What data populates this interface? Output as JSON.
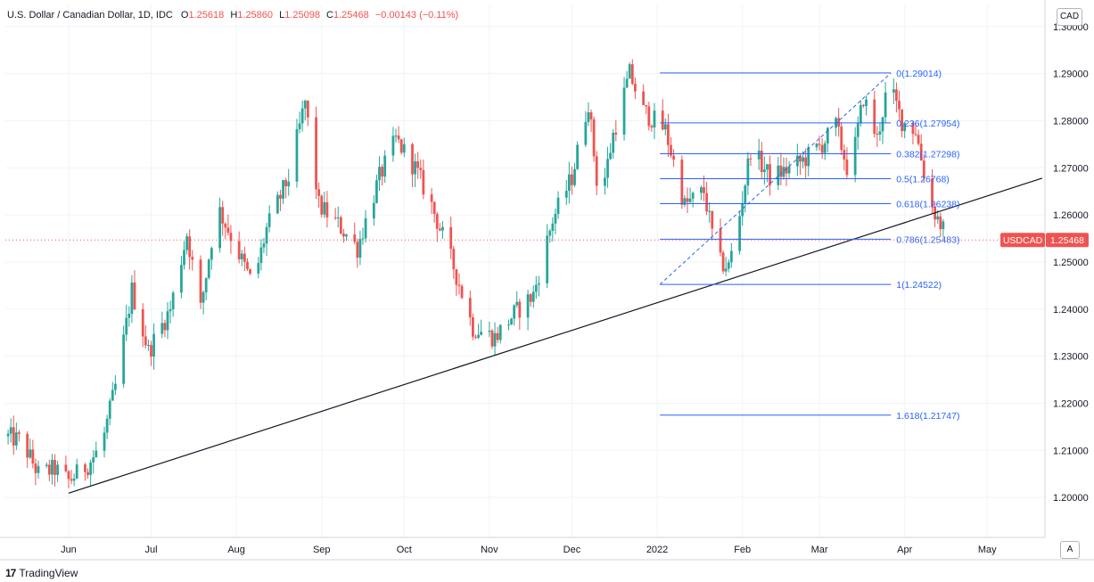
{
  "legend": {
    "name": "U.S. Dollar / Canadian Dollar, 1D, IDC",
    "o_label": "O",
    "o": "1.25618",
    "h_label": "H",
    "h": "1.25860",
    "l_label": "L",
    "l": "1.25098",
    "c_label": "C",
    "c": "1.25468",
    "change": "−0.00143 (−0.11%)"
  },
  "currency": "CAD",
  "auto_button": "A",
  "brand": {
    "logo": "17",
    "text": "TradingView"
  },
  "price_tag": {
    "symbol": "USDCAD",
    "value": "1.25468",
    "price": 1.25468
  },
  "colors": {
    "up": "#26a69a",
    "down": "#ef5350",
    "fib": "#2962ff",
    "trend": "#131722",
    "grid": "#f0f3fa"
  },
  "chart_data": {
    "type": "candlestick",
    "y_ticks": [
      "1.30000",
      "1.29000",
      "1.28000",
      "1.27000",
      "1.26000",
      "1.25000",
      "1.24000",
      "1.23000",
      "1.22000",
      "1.21000",
      "1.20000"
    ],
    "y_tick_values": [
      1.3,
      1.29,
      1.28,
      1.27,
      1.26,
      1.25,
      1.24,
      1.23,
      1.22,
      1.21,
      1.2
    ],
    "ylim": [
      1.1915,
      1.3045
    ],
    "x_ticks": [
      "Jun",
      "Jul",
      "Aug",
      "Sep",
      "Oct",
      "Nov",
      "Dec",
      "2022",
      "Feb",
      "Mar",
      "Apr",
      "May"
    ],
    "x_tick_days": [
      15,
      45,
      76,
      107,
      137,
      168,
      198,
      229,
      260,
      288,
      319,
      349
    ],
    "xlim": [
      -8,
      370
    ],
    "trendline": {
      "start": {
        "day": 15,
        "price": 1.2009
      },
      "end": {
        "day": 369,
        "price": 1.2678
      }
    },
    "fibonacci": {
      "start": {
        "day": 230,
        "price": 1.24522
      },
      "end": {
        "day": 314,
        "price": 1.29014
      },
      "levels": [
        {
          "label": "0(1.29014)",
          "price": 1.29014
        },
        {
          "label": "0.236(1.27954)",
          "price": 1.27954
        },
        {
          "label": "0.382(1.27298)",
          "price": 1.27298
        },
        {
          "label": "0.5(1.26768)",
          "price": 1.26768
        },
        {
          "label": "0.618(1.26238)",
          "price": 1.26238
        },
        {
          "label": "0.786(1.25483)",
          "price": 1.25483
        },
        {
          "label": "1(1.24522)",
          "price": 1.24522
        },
        {
          "label": "1.618(1.21747)",
          "price": 1.21747
        }
      ]
    },
    "anchors": [
      {
        "day": -8,
        "p": 1.213
      },
      {
        "day": -2,
        "p": 1.212
      },
      {
        "day": 4,
        "p": 1.205
      },
      {
        "day": 10,
        "p": 1.206
      },
      {
        "day": 15,
        "p": 1.2035
      },
      {
        "day": 22,
        "p": 1.207
      },
      {
        "day": 27,
        "p": 1.211
      },
      {
        "day": 33,
        "p": 1.226
      },
      {
        "day": 38,
        "p": 1.244
      },
      {
        "day": 44,
        "p": 1.231
      },
      {
        "day": 52,
        "p": 1.24
      },
      {
        "day": 58,
        "p": 1.256
      },
      {
        "day": 63,
        "p": 1.24
      },
      {
        "day": 69,
        "p": 1.262
      },
      {
        "day": 76,
        "p": 1.253
      },
      {
        "day": 82,
        "p": 1.245
      },
      {
        "day": 87,
        "p": 1.257
      },
      {
        "day": 95,
        "p": 1.268
      },
      {
        "day": 101,
        "p": 1.284
      },
      {
        "day": 106,
        "p": 1.262
      },
      {
        "day": 113,
        "p": 1.258
      },
      {
        "day": 120,
        "p": 1.253
      },
      {
        "day": 128,
        "p": 1.268
      },
      {
        "day": 134,
        "p": 1.276
      },
      {
        "day": 141,
        "p": 1.27
      },
      {
        "day": 147,
        "p": 1.262
      },
      {
        "day": 155,
        "p": 1.249
      },
      {
        "day": 162,
        "p": 1.236
      },
      {
        "day": 170,
        "p": 1.234
      },
      {
        "day": 177,
        "p": 1.239
      },
      {
        "day": 184,
        "p": 1.243
      },
      {
        "day": 191,
        "p": 1.259
      },
      {
        "day": 198,
        "p": 1.268
      },
      {
        "day": 204,
        "p": 1.284
      },
      {
        "day": 208,
        "p": 1.262
      },
      {
        "day": 213,
        "p": 1.277
      },
      {
        "day": 219,
        "p": 1.29
      },
      {
        "day": 224,
        "p": 1.282
      },
      {
        "day": 232,
        "p": 1.278
      },
      {
        "day": 239,
        "p": 1.262
      },
      {
        "day": 246,
        "p": 1.265
      },
      {
        "day": 251,
        "p": 1.25
      },
      {
        "day": 255,
        "p": 1.249
      },
      {
        "day": 259,
        "p": 1.26
      },
      {
        "day": 263,
        "p": 1.274
      },
      {
        "day": 270,
        "p": 1.268
      },
      {
        "day": 278,
        "p": 1.27
      },
      {
        "day": 283,
        "p": 1.272
      },
      {
        "day": 289,
        "p": 1.275
      },
      {
        "day": 294,
        "p": 1.279
      },
      {
        "day": 299,
        "p": 1.268
      },
      {
        "day": 304,
        "p": 1.285
      },
      {
        "day": 309,
        "p": 1.276
      },
      {
        "day": 313,
        "p": 1.288
      },
      {
        "day": 318,
        "p": 1.28
      },
      {
        "day": 323,
        "p": 1.278
      },
      {
        "day": 328,
        "p": 1.263
      },
      {
        "day": 332,
        "p": 1.258
      },
      {
        "day": 335,
        "p": 1.2547
      }
    ]
  }
}
